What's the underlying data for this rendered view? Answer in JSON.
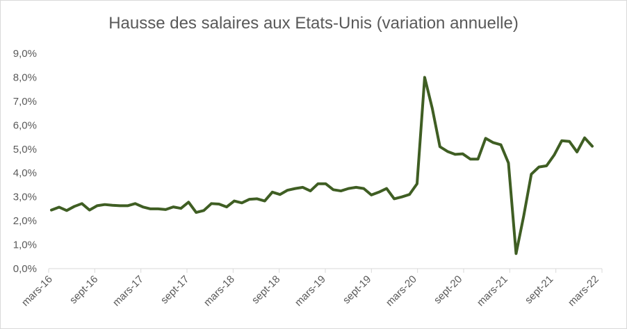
{
  "chart_data": {
    "type": "line",
    "title": "Hausse des salaires aux Etats-Unis (variation annuelle)",
    "xlabel": "",
    "ylabel": "",
    "ylim": [
      0,
      9
    ],
    "y_ticks": [
      "0,0%",
      "1,0%",
      "2,0%",
      "3,0%",
      "4,0%",
      "5,0%",
      "6,0%",
      "7,0%",
      "8,0%",
      "9,0%"
    ],
    "x_ticks": [
      "mars-16",
      "sept-16",
      "mars-17",
      "sept-17",
      "mars-18",
      "sept-18",
      "mars-19",
      "sept-19",
      "mars-20",
      "sept-20",
      "mars-21",
      "sept-21",
      "mars-22"
    ],
    "grid": false,
    "line_color": "#3f5e23",
    "series": [
      {
        "values": [
          2.45,
          2.57,
          2.43,
          2.6,
          2.72,
          2.45,
          2.63,
          2.68,
          2.65,
          2.63,
          2.63,
          2.72,
          2.58,
          2.5,
          2.5,
          2.47,
          2.58,
          2.52,
          2.78,
          2.35,
          2.43,
          2.72,
          2.7,
          2.58,
          2.83,
          2.75,
          2.9,
          2.92,
          2.83,
          3.2,
          3.1,
          3.28,
          3.35,
          3.4,
          3.25,
          3.55,
          3.55,
          3.3,
          3.25,
          3.35,
          3.4,
          3.35,
          3.08,
          3.2,
          3.35,
          2.92,
          3.0,
          3.1,
          3.55,
          8.0,
          6.7,
          5.1,
          4.9,
          4.78,
          4.8,
          4.58,
          4.58,
          5.45,
          5.27,
          5.18,
          4.42,
          0.63,
          2.2,
          3.95,
          4.25,
          4.3,
          4.75,
          5.35,
          5.32,
          4.88,
          5.47,
          5.12
        ]
      }
    ]
  }
}
